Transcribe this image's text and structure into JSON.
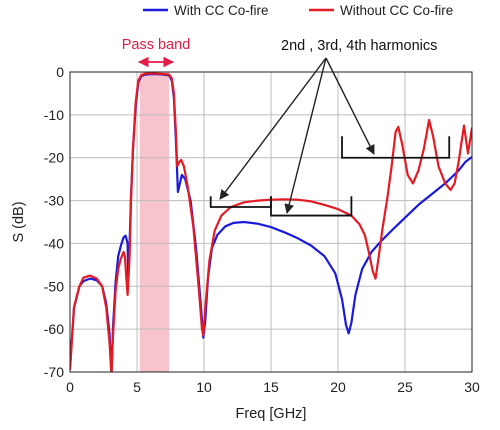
{
  "chart_data": {
    "type": "line",
    "title": "",
    "xlabel": "Freq [GHz]",
    "ylabel": "S (dB)",
    "xlim": [
      0,
      30
    ],
    "ylim": [
      -70,
      0
    ],
    "xticks": [
      0,
      5,
      10,
      15,
      20,
      25,
      30
    ],
    "yticks": [
      0,
      -10,
      -20,
      -30,
      -40,
      -50,
      -60,
      -70
    ],
    "grid": true,
    "legend_position": "top",
    "series": [
      {
        "name": "With CC Co-fire",
        "color": "#1a1adc",
        "points": [
          [
            0,
            -69
          ],
          [
            0.3,
            -55
          ],
          [
            0.7,
            -50
          ],
          [
            1.0,
            -48.8
          ],
          [
            1.5,
            -48.2
          ],
          [
            2.0,
            -48.6
          ],
          [
            2.4,
            -50
          ],
          [
            2.7,
            -54
          ],
          [
            2.95,
            -61
          ],
          [
            3.1,
            -71
          ],
          [
            3.2,
            -60
          ],
          [
            3.4,
            -49
          ],
          [
            3.6,
            -43
          ],
          [
            3.8,
            -40.5
          ],
          [
            4.0,
            -38.6
          ],
          [
            4.15,
            -38.2
          ],
          [
            4.3,
            -40
          ],
          [
            4.35,
            -48.5
          ],
          [
            4.45,
            -40
          ],
          [
            4.55,
            -29
          ],
          [
            4.7,
            -18
          ],
          [
            4.9,
            -8
          ],
          [
            5.1,
            -2.5
          ],
          [
            5.3,
            -1
          ],
          [
            5.6,
            -0.6
          ],
          [
            6.0,
            -0.5
          ],
          [
            6.5,
            -0.5
          ],
          [
            7.0,
            -0.6
          ],
          [
            7.4,
            -0.8
          ],
          [
            7.6,
            -2
          ],
          [
            7.75,
            -6
          ],
          [
            7.9,
            -16
          ],
          [
            8.05,
            -28
          ],
          [
            8.2,
            -26
          ],
          [
            8.35,
            -24
          ],
          [
            8.6,
            -25
          ],
          [
            9.0,
            -30
          ],
          [
            9.4,
            -41
          ],
          [
            9.75,
            -54
          ],
          [
            9.95,
            -62
          ],
          [
            10.1,
            -58
          ],
          [
            10.3,
            -48
          ],
          [
            10.6,
            -41
          ],
          [
            11.0,
            -38
          ],
          [
            11.6,
            -36
          ],
          [
            12.2,
            -35.2
          ],
          [
            13.0,
            -35
          ],
          [
            14.0,
            -35.4
          ],
          [
            15.0,
            -36.2
          ],
          [
            16.0,
            -37.4
          ],
          [
            17.0,
            -38.8
          ],
          [
            18.0,
            -40.5
          ],
          [
            19.0,
            -43
          ],
          [
            19.8,
            -47
          ],
          [
            20.3,
            -53
          ],
          [
            20.6,
            -59
          ],
          [
            20.8,
            -61
          ],
          [
            21.0,
            -58.5
          ],
          [
            21.3,
            -52
          ],
          [
            21.8,
            -46
          ],
          [
            22.5,
            -42
          ],
          [
            23.2,
            -39.5
          ],
          [
            24.0,
            -37
          ],
          [
            25.0,
            -34
          ],
          [
            26.0,
            -31
          ],
          [
            27.0,
            -28.5
          ],
          [
            28.0,
            -26
          ],
          [
            28.5,
            -24.5
          ],
          [
            29.0,
            -23
          ],
          [
            29.5,
            -21
          ],
          [
            30.0,
            -19.8
          ]
        ]
      },
      {
        "name": "Without CC Co-fire",
        "color": "#e41b23",
        "points": [
          [
            0,
            -69.5
          ],
          [
            0.3,
            -55
          ],
          [
            0.7,
            -50
          ],
          [
            1.0,
            -48
          ],
          [
            1.5,
            -47.5
          ],
          [
            2.0,
            -48.2
          ],
          [
            2.4,
            -50
          ],
          [
            2.7,
            -55
          ],
          [
            2.95,
            -63
          ],
          [
            3.1,
            -71
          ],
          [
            3.2,
            -62
          ],
          [
            3.4,
            -51
          ],
          [
            3.6,
            -46
          ],
          [
            3.8,
            -43.5
          ],
          [
            4.0,
            -42
          ],
          [
            4.1,
            -43
          ],
          [
            4.2,
            -48
          ],
          [
            4.3,
            -52
          ],
          [
            4.45,
            -43
          ],
          [
            4.55,
            -30
          ],
          [
            4.7,
            -18
          ],
          [
            4.9,
            -7
          ],
          [
            5.1,
            -2
          ],
          [
            5.3,
            -0.8
          ],
          [
            5.6,
            -0.4
          ],
          [
            6.0,
            -0.3
          ],
          [
            6.5,
            -0.4
          ],
          [
            7.0,
            -0.5
          ],
          [
            7.4,
            -0.6
          ],
          [
            7.6,
            -1.5
          ],
          [
            7.75,
            -5
          ],
          [
            7.9,
            -14
          ],
          [
            8.0,
            -22
          ],
          [
            8.15,
            -21
          ],
          [
            8.3,
            -20.5
          ],
          [
            8.5,
            -22
          ],
          [
            8.8,
            -27
          ],
          [
            9.2,
            -36
          ],
          [
            9.6,
            -50
          ],
          [
            9.85,
            -60
          ],
          [
            9.95,
            -61.5
          ],
          [
            10.1,
            -55
          ],
          [
            10.4,
            -44
          ],
          [
            10.8,
            -37
          ],
          [
            11.3,
            -33.5
          ],
          [
            12.0,
            -31.5
          ],
          [
            13.0,
            -30.4
          ],
          [
            14.0,
            -30
          ],
          [
            15.0,
            -29.8
          ],
          [
            16.0,
            -29.7
          ],
          [
            17.0,
            -29.8
          ],
          [
            18.0,
            -30.2
          ],
          [
            19.0,
            -31
          ],
          [
            20.0,
            -32
          ],
          [
            21.0,
            -33.5
          ],
          [
            21.6,
            -35.5
          ],
          [
            22.0,
            -38
          ],
          [
            22.3,
            -42
          ],
          [
            22.6,
            -46.5
          ],
          [
            22.8,
            -48.2
          ],
          [
            23.0,
            -44
          ],
          [
            23.3,
            -37
          ],
          [
            23.7,
            -29
          ],
          [
            24.0,
            -22
          ],
          [
            24.3,
            -14
          ],
          [
            24.5,
            -12.8
          ],
          [
            24.8,
            -17
          ],
          [
            25.2,
            -24
          ],
          [
            25.6,
            -26
          ],
          [
            26.0,
            -23
          ],
          [
            26.4,
            -18
          ],
          [
            26.8,
            -11.2
          ],
          [
            27.1,
            -15
          ],
          [
            27.5,
            -22
          ],
          [
            28.0,
            -26
          ],
          [
            28.4,
            -27.5
          ],
          [
            28.7,
            -26
          ],
          [
            29.0,
            -21
          ],
          [
            29.4,
            -12.5
          ],
          [
            29.7,
            -19
          ],
          [
            29.9,
            -15
          ],
          [
            30.0,
            -13
          ]
        ]
      }
    ],
    "annotations": {
      "pass_band": {
        "label": "Pass band",
        "x_range": [
          5.2,
          7.4
        ],
        "color": "#f7c3cc"
      },
      "harmonics": {
        "label": "2nd , 3rd, 4th harmonics",
        "brackets": [
          {
            "x_range": [
              10.5,
              15.0
            ],
            "y": -31.5,
            "tick_y": -29
          },
          {
            "x_range": [
              15.0,
              21.0
            ],
            "y": -33.5,
            "tick_y": -29
          },
          {
            "x_range": [
              20.3,
              28.3
            ],
            "y": -20,
            "tick_y": -15
          }
        ]
      }
    }
  }
}
